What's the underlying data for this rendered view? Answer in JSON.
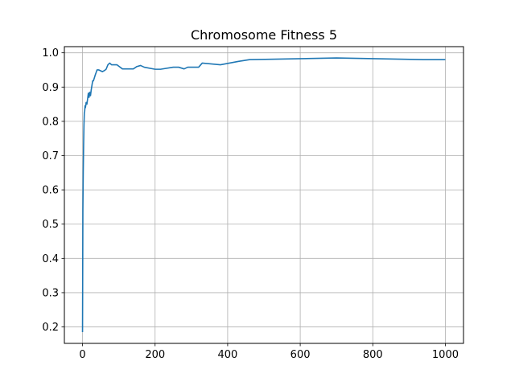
{
  "chart_data": {
    "type": "line",
    "title": "Chromosome Fitness 5",
    "xlabel": "",
    "ylabel": "",
    "xlim": [
      -50,
      1050
    ],
    "ylim": [
      0.152,
      1.018
    ],
    "xticks": [
      0,
      200,
      400,
      600,
      800,
      1000
    ],
    "yticks": [
      0.2,
      0.3,
      0.4,
      0.5,
      0.6,
      0.7,
      0.8,
      0.9,
      1.0
    ],
    "xtick_labels": [
      "0",
      "200",
      "400",
      "600",
      "800",
      "1000"
    ],
    "ytick_labels": [
      "0.2",
      "0.3",
      "0.4",
      "0.5",
      "0.6",
      "0.7",
      "0.8",
      "0.9",
      "1.0"
    ],
    "grid": true,
    "legend": "none",
    "line_color": "#1f77b4",
    "series": [
      {
        "x": [
          0,
          1,
          2,
          3,
          4,
          5,
          6,
          7,
          8,
          10,
          12,
          14,
          16,
          18,
          20,
          22,
          24,
          26,
          28,
          30,
          35,
          40,
          45,
          55,
          60,
          65,
          70,
          75,
          80,
          85,
          95,
          110,
          115,
          130,
          140,
          150,
          160,
          170,
          200,
          215,
          250,
          265,
          280,
          290,
          320,
          330,
          380,
          430,
          460,
          700,
          940,
          1000
        ],
        "y": [
          0.185,
          0.54,
          0.65,
          0.73,
          0.79,
          0.825,
          0.83,
          0.845,
          0.84,
          0.855,
          0.85,
          0.865,
          0.882,
          0.87,
          0.885,
          0.875,
          0.892,
          0.905,
          0.918,
          0.918,
          0.935,
          0.95,
          0.95,
          0.945,
          0.948,
          0.952,
          0.965,
          0.97,
          0.965,
          0.965,
          0.965,
          0.953,
          0.953,
          0.953,
          0.953,
          0.96,
          0.963,
          0.958,
          0.952,
          0.952,
          0.958,
          0.958,
          0.953,
          0.958,
          0.958,
          0.97,
          0.965,
          0.975,
          0.98,
          0.985,
          0.98,
          0.98
        ]
      }
    ]
  }
}
